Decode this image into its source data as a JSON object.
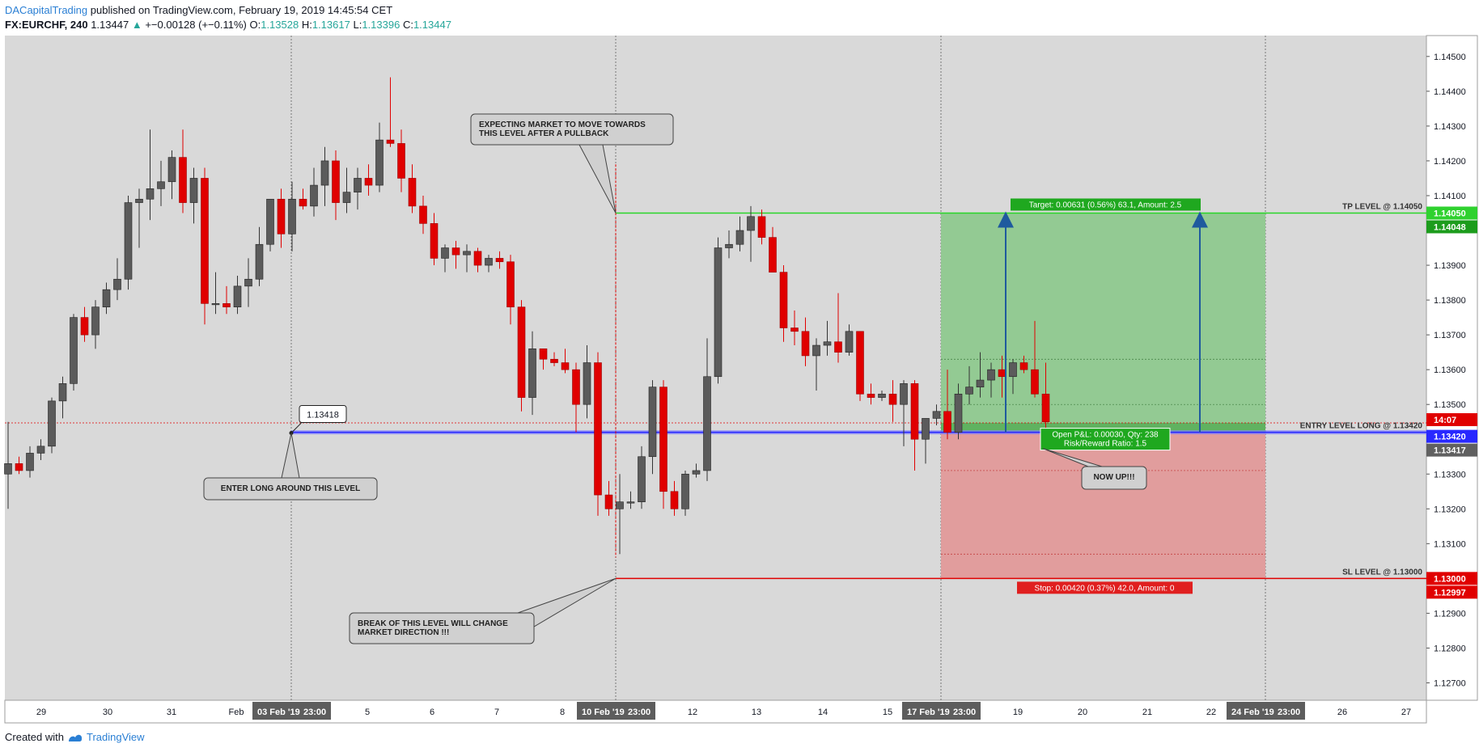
{
  "header": {
    "author": "DACapitalTrading",
    "published": "published on TradingView.com, February 19, 2019 14:45:54 CET",
    "symbol": "FX:EURCHF, 240",
    "last": "1.13447",
    "arrow": "▲",
    "change": "+−0.00128 (+−0.11%)",
    "o_label": "O:",
    "o_value": "1.13528",
    "h_label": "H:",
    "h_value": "1.13617",
    "l_label": "L:",
    "l_value": "1.13396",
    "c_label": "C:",
    "c_value": "1.13447"
  },
  "footer": {
    "created": "Created with",
    "brand": "TradingView"
  },
  "colors": {
    "plot_bg": "#d9d9d9",
    "bull": "#5b5b5b",
    "bear": "#e00000",
    "target_zone": "#8fc98f",
    "stop_zone": "#e29a9a",
    "tp_line": "#29d629",
    "sl_line": "#e00000",
    "entry_line": "#2424ff",
    "arrow": "#1f5a9e"
  },
  "chart_data": {
    "type": "candlestick",
    "ylim": [
      1.1265,
      1.1456
    ],
    "y_ticks": [
      "1.14500",
      "1.14400",
      "1.14300",
      "1.14200",
      "1.14100",
      "1.13900",
      "1.13800",
      "1.13700",
      "1.13600",
      "1.13500",
      "1.13300",
      "1.13200",
      "1.13100",
      "1.12900",
      "1.12800",
      "1.12700"
    ],
    "x_ticks": [
      "29",
      "30",
      "31",
      "Feb",
      "5",
      "6",
      "7",
      "8",
      "12",
      "13",
      "14",
      "15",
      "19",
      "20",
      "21",
      "22",
      "26",
      "27"
    ],
    "x_badges": [
      {
        "date": "03 Feb '19",
        "time": "23:00"
      },
      {
        "date": "10 Feb '19",
        "time": "23:00"
      },
      {
        "date": "17 Feb '19",
        "time": "23:00"
      },
      {
        "date": "24 Feb '19",
        "time": "23:00"
      }
    ],
    "price_badges": [
      {
        "text": "1.14050",
        "kind": "tp"
      },
      {
        "text": "1.14048",
        "kind": "tp_dark"
      },
      {
        "text": "14:07",
        "kind": "clock"
      },
      {
        "text": "1.13420",
        "kind": "entry"
      },
      {
        "text": "1.13417",
        "kind": "last"
      },
      {
        "text": "1.13000",
        "kind": "sl"
      },
      {
        "text": "1.12997",
        "kind": "sl"
      }
    ],
    "candles": [
      {
        "o": 1.133,
        "h": 1.1345,
        "l": 1.132,
        "c": 1.1333
      },
      {
        "o": 1.1333,
        "h": 1.1335,
        "l": 1.133,
        "c": 1.1331
      },
      {
        "o": 1.1331,
        "h": 1.1338,
        "l": 1.1329,
        "c": 1.1336
      },
      {
        "o": 1.1336,
        "h": 1.134,
        "l": 1.1334,
        "c": 1.1338
      },
      {
        "o": 1.1338,
        "h": 1.1352,
        "l": 1.1336,
        "c": 1.1351
      },
      {
        "o": 1.1351,
        "h": 1.1358,
        "l": 1.1346,
        "c": 1.1356
      },
      {
        "o": 1.1356,
        "h": 1.1376,
        "l": 1.1354,
        "c": 1.1375
      },
      {
        "o": 1.1375,
        "h": 1.1378,
        "l": 1.1368,
        "c": 1.137
      },
      {
        "o": 1.137,
        "h": 1.138,
        "l": 1.1366,
        "c": 1.1378
      },
      {
        "o": 1.1378,
        "h": 1.1385,
        "l": 1.1376,
        "c": 1.1383
      },
      {
        "o": 1.1383,
        "h": 1.1392,
        "l": 1.138,
        "c": 1.1386
      },
      {
        "o": 1.1386,
        "h": 1.141,
        "l": 1.1383,
        "c": 1.1408
      },
      {
        "o": 1.1408,
        "h": 1.1412,
        "l": 1.1395,
        "c": 1.1409
      },
      {
        "o": 1.1409,
        "h": 1.1429,
        "l": 1.1403,
        "c": 1.1412
      },
      {
        "o": 1.1412,
        "h": 1.142,
        "l": 1.1407,
        "c": 1.1414
      },
      {
        "o": 1.1414,
        "h": 1.1423,
        "l": 1.1409,
        "c": 1.1421
      },
      {
        "o": 1.1421,
        "h": 1.1429,
        "l": 1.1405,
        "c": 1.1408
      },
      {
        "o": 1.1408,
        "h": 1.1418,
        "l": 1.1402,
        "c": 1.1415
      },
      {
        "o": 1.1415,
        "h": 1.1418,
        "l": 1.1373,
        "c": 1.1379
      },
      {
        "o": 1.1379,
        "h": 1.1388,
        "l": 1.1376,
        "c": 1.1379
      },
      {
        "o": 1.1379,
        "h": 1.1384,
        "l": 1.1376,
        "c": 1.1378
      },
      {
        "o": 1.1378,
        "h": 1.1387,
        "l": 1.1376,
        "c": 1.1384
      },
      {
        "o": 1.1384,
        "h": 1.1392,
        "l": 1.1378,
        "c": 1.1386
      },
      {
        "o": 1.1386,
        "h": 1.1401,
        "l": 1.1384,
        "c": 1.1396
      },
      {
        "o": 1.1396,
        "h": 1.1408,
        "l": 1.1394,
        "c": 1.1409
      },
      {
        "o": 1.1409,
        "h": 1.1412,
        "l": 1.1395,
        "c": 1.1399
      },
      {
        "o": 1.1399,
        "h": 1.1414,
        "l": 1.1394,
        "c": 1.1409
      },
      {
        "o": 1.1409,
        "h": 1.1412,
        "l": 1.1406,
        "c": 1.1407
      },
      {
        "o": 1.1407,
        "h": 1.1418,
        "l": 1.1404,
        "c": 1.1413
      },
      {
        "o": 1.1413,
        "h": 1.1424,
        "l": 1.1407,
        "c": 1.142
      },
      {
        "o": 1.142,
        "h": 1.1423,
        "l": 1.1403,
        "c": 1.1408
      },
      {
        "o": 1.1408,
        "h": 1.1418,
        "l": 1.1405,
        "c": 1.1411
      },
      {
        "o": 1.1411,
        "h": 1.1418,
        "l": 1.1406,
        "c": 1.1415
      },
      {
        "o": 1.1415,
        "h": 1.1419,
        "l": 1.141,
        "c": 1.1413
      },
      {
        "o": 1.1413,
        "h": 1.1431,
        "l": 1.1411,
        "c": 1.1426
      },
      {
        "o": 1.1426,
        "h": 1.1444,
        "l": 1.1424,
        "c": 1.1425
      },
      {
        "o": 1.1425,
        "h": 1.1429,
        "l": 1.1411,
        "c": 1.1415
      },
      {
        "o": 1.1415,
        "h": 1.1419,
        "l": 1.1405,
        "c": 1.1407
      },
      {
        "o": 1.1407,
        "h": 1.141,
        "l": 1.1399,
        "c": 1.1402
      },
      {
        "o": 1.1402,
        "h": 1.1405,
        "l": 1.139,
        "c": 1.1392
      },
      {
        "o": 1.1392,
        "h": 1.1396,
        "l": 1.1388,
        "c": 1.1395
      },
      {
        "o": 1.1395,
        "h": 1.1397,
        "l": 1.1389,
        "c": 1.1393
      },
      {
        "o": 1.1393,
        "h": 1.1396,
        "l": 1.1388,
        "c": 1.1394
      },
      {
        "o": 1.1394,
        "h": 1.1395,
        "l": 1.1388,
        "c": 1.139
      },
      {
        "o": 1.139,
        "h": 1.1393,
        "l": 1.1388,
        "c": 1.1392
      },
      {
        "o": 1.1392,
        "h": 1.1394,
        "l": 1.1389,
        "c": 1.1391
      },
      {
        "o": 1.1391,
        "h": 1.1393,
        "l": 1.1373,
        "c": 1.1378
      },
      {
        "o": 1.1378,
        "h": 1.138,
        "l": 1.1348,
        "c": 1.1352
      },
      {
        "o": 1.1352,
        "h": 1.1371,
        "l": 1.1347,
        "c": 1.1366
      },
      {
        "o": 1.1366,
        "h": 1.1366,
        "l": 1.136,
        "c": 1.1363
      },
      {
        "o": 1.1363,
        "h": 1.1365,
        "l": 1.1361,
        "c": 1.1362
      },
      {
        "o": 1.1362,
        "h": 1.1366,
        "l": 1.1359,
        "c": 1.136
      },
      {
        "o": 1.136,
        "h": 1.1362,
        "l": 1.1342,
        "c": 1.135
      },
      {
        "o": 1.135,
        "h": 1.1367,
        "l": 1.1346,
        "c": 1.1362
      },
      {
        "o": 1.1362,
        "h": 1.1365,
        "l": 1.1318,
        "c": 1.1324
      },
      {
        "o": 1.1324,
        "h": 1.1328,
        "l": 1.1318,
        "c": 1.132
      },
      {
        "o": 1.132,
        "h": 1.133,
        "l": 1.1307,
        "c": 1.1322
      },
      {
        "o": 1.1322,
        "h": 1.1325,
        "l": 1.132,
        "c": 1.1322
      },
      {
        "o": 1.1322,
        "h": 1.1338,
        "l": 1.132,
        "c": 1.1335
      },
      {
        "o": 1.1335,
        "h": 1.1357,
        "l": 1.133,
        "c": 1.1355
      },
      {
        "o": 1.1355,
        "h": 1.1357,
        "l": 1.132,
        "c": 1.1325
      },
      {
        "o": 1.1325,
        "h": 1.1328,
        "l": 1.1318,
        "c": 1.132
      },
      {
        "o": 1.132,
        "h": 1.1331,
        "l": 1.1318,
        "c": 1.133
      },
      {
        "o": 1.133,
        "h": 1.1333,
        "l": 1.1329,
        "c": 1.1331
      },
      {
        "o": 1.1331,
        "h": 1.1369,
        "l": 1.1328,
        "c": 1.1358
      },
      {
        "o": 1.1358,
        "h": 1.1398,
        "l": 1.1356,
        "c": 1.1395
      },
      {
        "o": 1.1395,
        "h": 1.14,
        "l": 1.1392,
        "c": 1.1396
      },
      {
        "o": 1.1396,
        "h": 1.1404,
        "l": 1.1394,
        "c": 1.14
      },
      {
        "o": 1.14,
        "h": 1.1407,
        "l": 1.1391,
        "c": 1.1404
      },
      {
        "o": 1.1404,
        "h": 1.1406,
        "l": 1.1396,
        "c": 1.1398
      },
      {
        "o": 1.1398,
        "h": 1.1401,
        "l": 1.1388,
        "c": 1.1388
      },
      {
        "o": 1.1388,
        "h": 1.139,
        "l": 1.1368,
        "c": 1.1372
      },
      {
        "o": 1.1372,
        "h": 1.1377,
        "l": 1.1367,
        "c": 1.1371
      },
      {
        "o": 1.1371,
        "h": 1.1375,
        "l": 1.1361,
        "c": 1.1364
      },
      {
        "o": 1.1364,
        "h": 1.1369,
        "l": 1.1354,
        "c": 1.1367
      },
      {
        "o": 1.1367,
        "h": 1.1374,
        "l": 1.1364,
        "c": 1.1368
      },
      {
        "o": 1.1368,
        "h": 1.1382,
        "l": 1.1362,
        "c": 1.1365
      },
      {
        "o": 1.1365,
        "h": 1.1373,
        "l": 1.1364,
        "c": 1.1371
      },
      {
        "o": 1.1371,
        "h": 1.1371,
        "l": 1.1351,
        "c": 1.1353
      },
      {
        "o": 1.1353,
        "h": 1.1356,
        "l": 1.135,
        "c": 1.1352
      },
      {
        "o": 1.1352,
        "h": 1.1354,
        "l": 1.1351,
        "c": 1.1353
      },
      {
        "o": 1.1353,
        "h": 1.1357,
        "l": 1.1345,
        "c": 1.135
      },
      {
        "o": 1.135,
        "h": 1.1357,
        "l": 1.1338,
        "c": 1.1356
      },
      {
        "o": 1.1356,
        "h": 1.1357,
        "l": 1.1331,
        "c": 1.134
      },
      {
        "o": 1.134,
        "h": 1.1345,
        "l": 1.1333,
        "c": 1.1346
      },
      {
        "o": 1.1346,
        "h": 1.135,
        "l": 1.1344,
        "c": 1.1348
      },
      {
        "o": 1.1348,
        "h": 1.136,
        "l": 1.134,
        "c": 1.1342
      },
      {
        "o": 1.1342,
        "h": 1.1356,
        "l": 1.134,
        "c": 1.1353
      },
      {
        "o": 1.1353,
        "h": 1.1361,
        "l": 1.135,
        "c": 1.1355
      },
      {
        "o": 1.1355,
        "h": 1.1365,
        "l": 1.1352,
        "c": 1.1357
      },
      {
        "o": 1.1357,
        "h": 1.1362,
        "l": 1.1352,
        "c": 1.136
      },
      {
        "o": 1.136,
        "h": 1.1364,
        "l": 1.1352,
        "c": 1.1358
      },
      {
        "o": 1.1358,
        "h": 1.1363,
        "l": 1.1353,
        "c": 1.1362
      },
      {
        "o": 1.1362,
        "h": 1.1364,
        "l": 1.1359,
        "c": 1.136
      },
      {
        "o": 1.136,
        "h": 1.1374,
        "l": 1.1352,
        "c": 1.1353
      },
      {
        "o": 1.1353,
        "h": 1.1362,
        "l": 1.134,
        "c": 1.1345
      }
    ],
    "levels": {
      "tp": {
        "price": 1.1405,
        "label": "TP LEVEL @ 1.14050"
      },
      "entry": {
        "price": 1.1342,
        "label": "ENTRY LEVEL LONG @ 1.13420"
      },
      "sl": {
        "price": 1.13,
        "label": "SL LEVEL @ 1.13000"
      },
      "current": {
        "price": 1.13447
      },
      "marker": {
        "price": 1.13418,
        "label": "1.13418"
      }
    },
    "position": {
      "target_text": "Target: 0.00631 (0.56%) 63.1, Amount: 2.5",
      "stop_text": "Stop: 0.00420 (0.37%) 42.0, Amount: 0",
      "pnl_line1": "Open P&L: 0.00030, Qty: 238",
      "pnl_line2": "Risk/Reward Ratio: 1.5"
    },
    "annotations": [
      {
        "id": "expect",
        "lines": [
          "EXPECTING MARKET TO MOVE TOWARDS",
          "THIS LEVEL AFTER A PULLBACK"
        ]
      },
      {
        "id": "enter",
        "lines": [
          "ENTER LONG AROUND THIS LEVEL"
        ]
      },
      {
        "id": "break",
        "lines": [
          "BREAK OF THIS LEVEL WILL CHANGE",
          "MARKET DIRECTION !!!"
        ]
      },
      {
        "id": "nowup",
        "lines": [
          "NOW UP!!!"
        ]
      }
    ]
  }
}
